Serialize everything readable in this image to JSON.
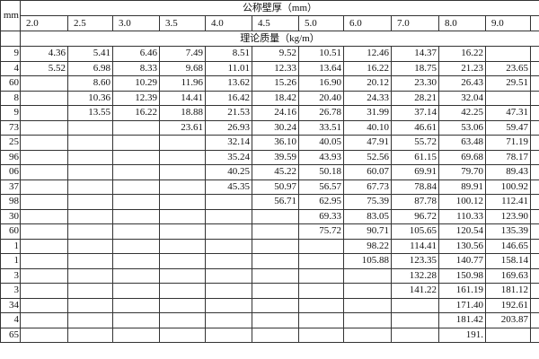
{
  "header": {
    "corner": "mm",
    "title": "公称壁厚（mm）",
    "unit": "理论质量（kg/m）",
    "thickness": [
      "2.0",
      "2.5",
      "3.0",
      "3.5",
      "4.0",
      "4.5",
      "5.0",
      "6.0",
      "7.0",
      "8.0",
      "9.0"
    ]
  },
  "table": {
    "rows": [
      [
        "9",
        "4.36",
        "5.41",
        "6.46",
        "7.49",
        "8.51",
        "9.52",
        "10.51",
        "12.46",
        "14.37",
        "16.22",
        null
      ],
      [
        "4",
        "5.52",
        "6.98",
        "8.33",
        "9.68",
        "11.01",
        "12.33",
        "13.64",
        "16.22",
        "18.75",
        "21.23",
        "23.65"
      ],
      [
        "60",
        null,
        "8.60",
        "10.29",
        "11.96",
        "13.62",
        "15.26",
        "16.90",
        "20.12",
        "23.30",
        "26.43",
        "29.51"
      ],
      [
        "8",
        null,
        "10.36",
        "12.39",
        "14.41",
        "16.42",
        "18.42",
        "20.40",
        "24.33",
        "28.21",
        "32.04",
        null
      ],
      [
        "9",
        null,
        "13.55",
        "16.22",
        "18.88",
        "21.53",
        "24.16",
        "26.78",
        "31.99",
        "37.14",
        "42.25",
        "47.31"
      ],
      [
        "73",
        null,
        null,
        null,
        "23.61",
        "26.93",
        "30.24",
        "33.51",
        "40.10",
        "46.61",
        "53.06",
        "59.47"
      ],
      [
        "25",
        null,
        null,
        null,
        null,
        "32.14",
        "36.10",
        "40.05",
        "47.91",
        "55.72",
        "63.48",
        "71.19"
      ],
      [
        "96",
        null,
        null,
        null,
        null,
        "35.24",
        "39.59",
        "43.93",
        "52.56",
        "61.15",
        "69.68",
        "78.17"
      ],
      [
        "06",
        null,
        null,
        null,
        null,
        "40.25",
        "45.22",
        "50.18",
        "60.07",
        "69.91",
        "79.70",
        "89.43"
      ],
      [
        "37",
        null,
        null,
        null,
        null,
        "45.35",
        "50.97",
        "56.57",
        "67.73",
        "78.84",
        "89.91",
        "100.92"
      ],
      [
        "98",
        null,
        null,
        null,
        null,
        null,
        "56.71",
        "62.95",
        "75.39",
        "87.78",
        "100.12",
        "112.41"
      ],
      [
        "30",
        null,
        null,
        null,
        null,
        null,
        null,
        "69.33",
        "83.05",
        "96.72",
        "110.33",
        "123.90"
      ],
      [
        "60",
        null,
        null,
        null,
        null,
        null,
        null,
        "75.72",
        "90.71",
        "105.65",
        "120.54",
        "135.39"
      ],
      [
        "1",
        null,
        null,
        null,
        null,
        null,
        null,
        null,
        "98.22",
        "114.41",
        "130.56",
        "146.65"
      ],
      [
        "1",
        null,
        null,
        null,
        null,
        null,
        null,
        null,
        "105.88",
        "123.35",
        "140.77",
        "158.14"
      ],
      [
        "3",
        null,
        null,
        null,
        null,
        null,
        null,
        null,
        null,
        "132.28",
        "150.98",
        "169.63"
      ],
      [
        "3",
        null,
        null,
        null,
        null,
        null,
        null,
        null,
        null,
        "141.22",
        "161.19",
        "181.12"
      ],
      [
        "34",
        null,
        null,
        null,
        null,
        null,
        null,
        null,
        null,
        null,
        "171.40",
        "192.61"
      ],
      [
        "4",
        null,
        null,
        null,
        null,
        null,
        null,
        null,
        null,
        null,
        "181.42",
        "203.87"
      ],
      [
        "65",
        null,
        null,
        null,
        null,
        null,
        null,
        null,
        null,
        null,
        "191.",
        null
      ]
    ]
  }
}
